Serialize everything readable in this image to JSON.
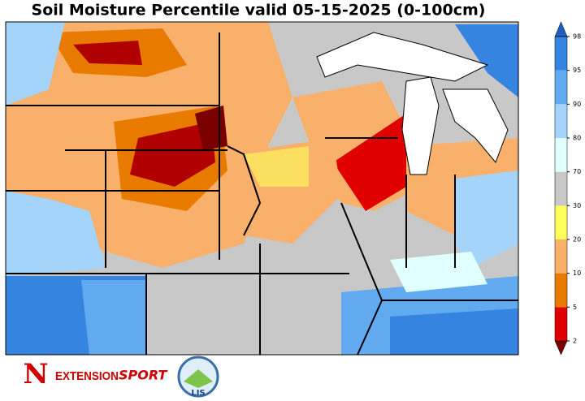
{
  "header": {
    "title": "Soil Moisture Percentile valid 05-15-2025 (0-100cm)"
  },
  "colorbar": {
    "ticks": [
      2,
      5,
      10,
      20,
      30,
      70,
      80,
      90,
      95,
      98
    ],
    "colors": [
      "#7a0000",
      "#e00000",
      "#e87a00",
      "#f8b06a",
      "#ffff5a",
      "#c8c8c8",
      "#e0ffff",
      "#a4d4fa",
      "#62aaf0",
      "#3484e0",
      "#1f5fc2"
    ]
  },
  "logos": {
    "nebraska": "N",
    "extension": "EXTENSION",
    "sport": "SPORT",
    "lis": "LIS"
  }
}
